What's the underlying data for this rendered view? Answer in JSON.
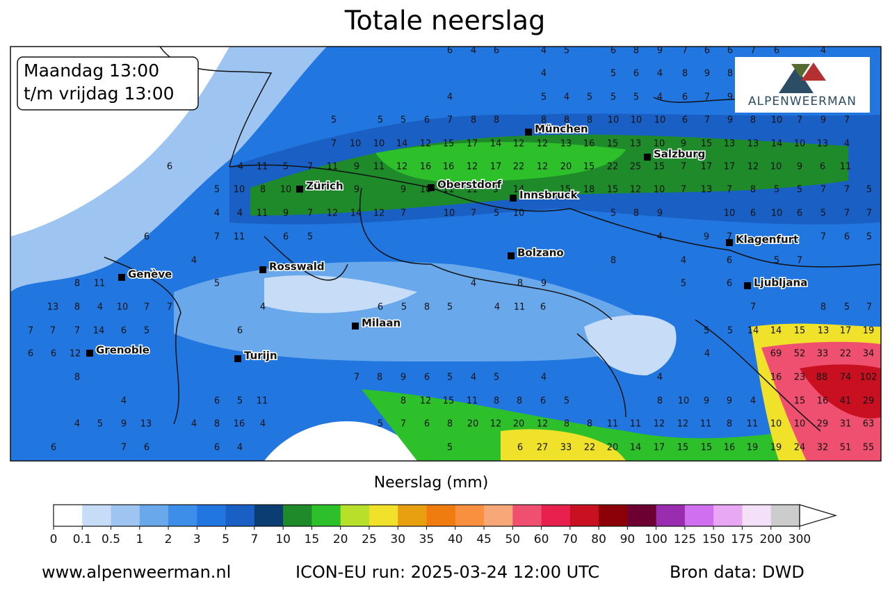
{
  "title": "Totale neerslag",
  "period": [
    "Maandag 13:00",
    "t/m vrijdag 13:00"
  ],
  "logo": "ALPENWEERMAN",
  "cities": [
    "München",
    "Salzburg",
    "Zürich",
    "Oberstdorf",
    "Innsbruck",
    "Klagenfurt",
    "Bolzano",
    "Rosswald",
    "Genève",
    "Ljubljana",
    "Milaan",
    "Grenoble",
    "Turijn"
  ],
  "map_values": [
    [
      6,
      4,
      6,
      4,
      5,
      6,
      8,
      9,
      7,
      6,
      6,
      7,
      6,
      4
    ],
    [
      4,
      5,
      6,
      4,
      8,
      9,
      8
    ],
    [
      4,
      5,
      4,
      5,
      5,
      5,
      4,
      6,
      7,
      9
    ],
    [
      5,
      5,
      5,
      6,
      7,
      8,
      8,
      8,
      8,
      8,
      10,
      10,
      10,
      6,
      7,
      9,
      8,
      10,
      7,
      9,
      7
    ],
    [
      7,
      10,
      10,
      14,
      12,
      15,
      17,
      14,
      12,
      12,
      13,
      16,
      15,
      13,
      10,
      9,
      15,
      13,
      13,
      14,
      10,
      13,
      4
    ],
    [
      6,
      4,
      11,
      5,
      7,
      11,
      9,
      11,
      12,
      16,
      16,
      12,
      17,
      22,
      12,
      20,
      15,
      22,
      25,
      15,
      7,
      17,
      17,
      12,
      10,
      9,
      6,
      11
    ],
    [
      5,
      10,
      8,
      10,
      9,
      9,
      10,
      11,
      11,
      9,
      14,
      15,
      18,
      15,
      12,
      10,
      7,
      13,
      7,
      8,
      5,
      5,
      7,
      7,
      5
    ],
    [
      4,
      4,
      11,
      9,
      7,
      12,
      14,
      12,
      7,
      10,
      7,
      5,
      10,
      5,
      8,
      9,
      10,
      6,
      10,
      6,
      5,
      7,
      7
    ],
    [
      6,
      7,
      11,
      6,
      5,
      4,
      9,
      7,
      7,
      6,
      5
    ],
    [
      4,
      8,
      4,
      6,
      5,
      7
    ],
    [
      8,
      11,
      5,
      4,
      8,
      9,
      5,
      6
    ],
    [
      13,
      8,
      4,
      10,
      7,
      7,
      4,
      6,
      5,
      8,
      5,
      4,
      11,
      6,
      7,
      8,
      5,
      7
    ],
    [
      7,
      7,
      7,
      14,
      6,
      5,
      6,
      5,
      5,
      14,
      14,
      15,
      13,
      17,
      19
    ],
    [
      6,
      6,
      12,
      4,
      69,
      52,
      33,
      22,
      34
    ],
    [
      8,
      7,
      8,
      9,
      6,
      5,
      4,
      5,
      4,
      4,
      16,
      23,
      88,
      74,
      102
    ],
    [
      4,
      6,
      5,
      11,
      8,
      12,
      15,
      11,
      8,
      8,
      6,
      5,
      8,
      10,
      9,
      9,
      4,
      15,
      16,
      41,
      29
    ],
    [
      4,
      5,
      9,
      13,
      4,
      8,
      16,
      4,
      5,
      7,
      6,
      8,
      20,
      12,
      20,
      12,
      8,
      8,
      11,
      11,
      12,
      12,
      11,
      8,
      11,
      10,
      10,
      29,
      31,
      63
    ],
    [
      6,
      7,
      6,
      6,
      4,
      5,
      6,
      27,
      33,
      22,
      20,
      14,
      17,
      15,
      15,
      16,
      19,
      19,
      24,
      32,
      51,
      55
    ]
  ],
  "colorbar": {
    "label": "Neerslag (mm)",
    "ticks": [
      0,
      0.1,
      0.5,
      1,
      2,
      3,
      5,
      7,
      10,
      15,
      20,
      25,
      30,
      35,
      40,
      45,
      50,
      60,
      70,
      80,
      90,
      100,
      125,
      150,
      175,
      200,
      300
    ],
    "colors": [
      "#ffffff",
      "#c6dcf7",
      "#9ec5f2",
      "#6aa8ec",
      "#3d8ee8",
      "#2176e0",
      "#1a5fc4",
      "#0b3d72",
      "#1e8a2a",
      "#2ec02a",
      "#b8e02a",
      "#f0e22a",
      "#e8a010",
      "#f07c10",
      "#f89040",
      "#f8a878",
      "#f05070",
      "#e8204e",
      "#c81020",
      "#8c0008",
      "#6c0030",
      "#9a2cb0",
      "#d070f0",
      "#e8a8f4",
      "#f4e0f8",
      "#cccccc"
    ]
  },
  "footer": [
    "www.alpenweerman.nl",
    "ICON-EU run: 2025-03-24 12:00 UTC",
    "Bron data: DWD"
  ]
}
